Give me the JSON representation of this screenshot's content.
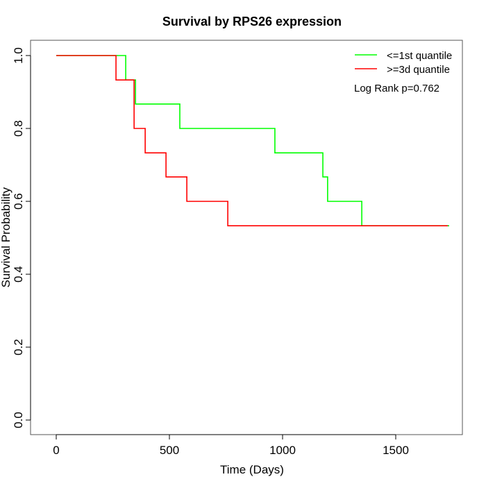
{
  "chart_data": {
    "type": "line",
    "subtype": "kaplan-meier-step",
    "title": "Survival by RPS26 expression",
    "xlabel": "Time (Days)",
    "ylabel": "Survival Probability",
    "xlim": [
      -50,
      1800
    ],
    "ylim": [
      -0.04,
      1.04
    ],
    "xticks": [
      0,
      500,
      1000,
      1500
    ],
    "xtick_labels": [
      "0",
      "500",
      "1000",
      "1500"
    ],
    "yticks": [
      0.0,
      0.2,
      0.4,
      0.6,
      0.8,
      1.0
    ],
    "ytick_labels": [
      "0.0",
      "0.2",
      "0.4",
      "0.6",
      "0.8",
      "1.0"
    ],
    "grid": false,
    "legend_position": "top-right",
    "annotation": "Log Rank p=0.762",
    "series": [
      {
        "name": "<=1st quantile",
        "color": "#00ff00",
        "x": [
          0,
          307,
          350,
          546,
          966,
          1178,
          1199,
          1350,
          1736
        ],
        "y": [
          1.0,
          0.933,
          0.867,
          0.8,
          0.733,
          0.667,
          0.6,
          0.533,
          0.533
        ]
      },
      {
        "name": ">=3d quantile",
        "color": "#ff0000",
        "x": [
          0,
          264,
          344,
          393,
          485,
          577,
          758,
          1730
        ],
        "y": [
          1.0,
          0.933,
          0.8,
          0.733,
          0.667,
          0.6,
          0.533,
          0.533
        ]
      }
    ]
  }
}
